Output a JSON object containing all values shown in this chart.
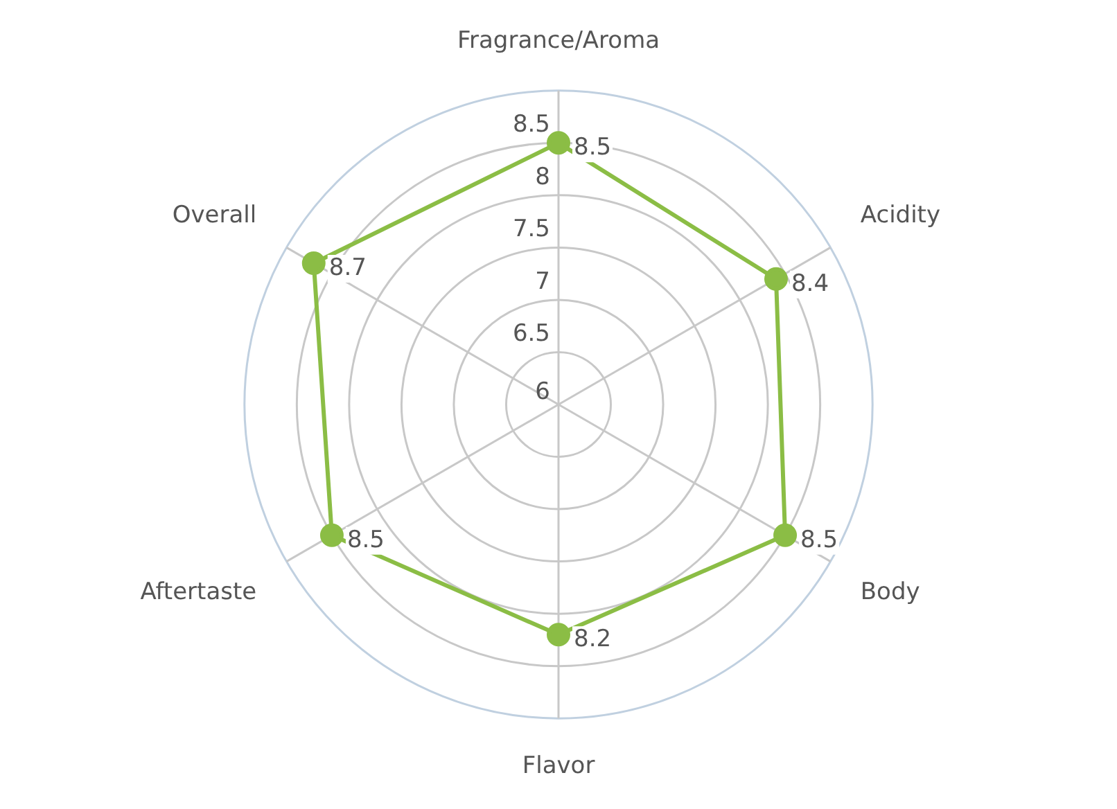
{
  "chart_data": {
    "type": "radar",
    "categories": [
      "Fragrance/Aroma",
      "Acidity",
      "Body",
      "Flavor",
      "Aftertaste",
      "Overall"
    ],
    "series": [
      {
        "color": "#8bbd45",
        "values": [
          8.5,
          8.4,
          8.5,
          8.2,
          8.5,
          8.7
        ]
      }
    ],
    "ylim": [
      6,
      9
    ],
    "yticks": [
      6,
      6.5,
      7,
      7.5,
      8,
      8.5
    ],
    "data_labels": true,
    "marker": "circle",
    "grid": true,
    "legend": false
  }
}
